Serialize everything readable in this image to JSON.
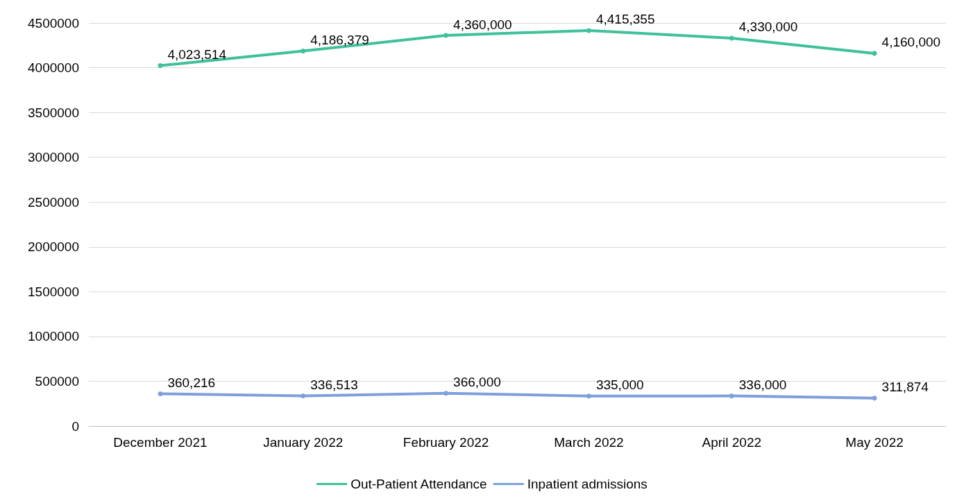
{
  "chart_data": {
    "type": "line",
    "categories": [
      "December 2021",
      "January 2022",
      "February 2022",
      "March 2022",
      "April 2022",
      "May 2022"
    ],
    "series": [
      {
        "name": "Out-Patient Attendance",
        "color": "#3fc19a",
        "values": [
          4023514,
          4186379,
          4360000,
          4415355,
          4330000,
          4160000
        ],
        "value_labels": [
          "4,023,514",
          "4,186,379",
          "4,360,000",
          "4,415,355",
          "4,330,000",
          "4,160,000"
        ]
      },
      {
        "name": "Inpatient admissions",
        "color": "#7f9fdc",
        "values": [
          360216,
          336513,
          366000,
          335000,
          336000,
          311874
        ],
        "value_labels": [
          "360,216",
          "336,513",
          "366,000",
          "335,000",
          "336,000",
          "311,874"
        ]
      }
    ],
    "ylim": [
      0,
      4500000
    ],
    "yticks": [
      0,
      500000,
      1000000,
      1500000,
      2000000,
      2500000,
      3000000,
      3500000,
      4000000,
      4500000
    ],
    "grid": "y",
    "legend": "bottom",
    "marker": "circle",
    "line_style": "solid"
  }
}
